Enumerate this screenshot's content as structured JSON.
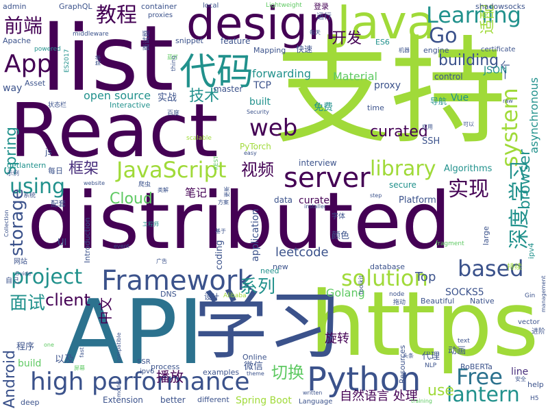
{
  "palette": {
    "background": "#ffffff",
    "c1": "#440154",
    "c2": "#3b528b",
    "c3": "#21918c",
    "c4": "#5ec962",
    "c5": "#a0da39",
    "c6": "#2c728e",
    "c7": "#472d7b"
  },
  "words": [
    {
      "text": "React",
      "color": "#440154"
    },
    {
      "text": "distributed",
      "color": "#440154"
    },
    {
      "text": "支持",
      "color": "#a0da39"
    },
    {
      "text": "list",
      "color": "#440154"
    },
    {
      "text": "API",
      "color": "#2c728e"
    },
    {
      "text": "https",
      "color": "#a0da39"
    },
    {
      "text": "学习",
      "color": "#3b528b"
    },
    {
      "text": "design",
      "color": "#440154"
    },
    {
      "text": "Java",
      "color": "#a0da39"
    },
    {
      "text": "Python",
      "color": "#3b528b"
    },
    {
      "text": "high performance",
      "color": "#3b528b"
    },
    {
      "text": "代码",
      "color": "#21918c"
    },
    {
      "text": "Framework",
      "color": "#3b528b"
    },
    {
      "text": "server",
      "color": "#440154"
    },
    {
      "text": "JavaScript",
      "color": "#a0da39"
    },
    {
      "text": "web",
      "color": "#440154"
    },
    {
      "text": "Learning",
      "color": "#21918c"
    },
    {
      "text": "solution",
      "color": "#a0da39"
    },
    {
      "text": "project",
      "color": "#21918c"
    },
    {
      "text": "system",
      "color": "#a0da39"
    },
    {
      "text": "based",
      "color": "#3b528b"
    },
    {
      "text": "library",
      "color": "#a0da39"
    },
    {
      "text": "Free",
      "color": "#2c728e"
    },
    {
      "text": "lantern",
      "color": "#21918c"
    },
    {
      "text": "App",
      "color": "#440154"
    },
    {
      "text": "Go",
      "color": "#3b528b"
    },
    {
      "text": "教程",
      "color": "#440154"
    },
    {
      "text": "前端",
      "color": "#440154"
    },
    {
      "text": "building",
      "color": "#3b528b"
    },
    {
      "text": "系列",
      "color": "#21918c"
    },
    {
      "text": "面试",
      "color": "#21918c"
    },
    {
      "text": "视频",
      "color": "#440154"
    },
    {
      "text": "实现",
      "color": "#440154"
    },
    {
      "text": "深度 学习",
      "color": "#21918c"
    },
    {
      "text": "using",
      "color": "#21918c"
    },
    {
      "text": "storage",
      "color": "#3b528b"
    },
    {
      "text": "Spring",
      "color": "#21918c"
    },
    {
      "text": "Cloud",
      "color": "#5ec962"
    },
    {
      "text": "curated",
      "color": "#440154"
    },
    {
      "text": "切换",
      "color": "#5ec962"
    },
    {
      "text": "browser",
      "color": "#21918c"
    },
    {
      "text": "技术",
      "color": "#21918c"
    },
    {
      "text": "框架",
      "color": "#472d7b"
    },
    {
      "text": "开发",
      "color": "#440154"
    },
    {
      "text": "client",
      "color": "#440154"
    },
    {
      "text": "Android",
      "color": "#3b528b"
    },
    {
      "text": "适配",
      "color": "#a0da39"
    },
    {
      "text": "中文",
      "color": "#440154"
    },
    {
      "text": "leetcode",
      "color": "#3b528b"
    },
    {
      "text": "use",
      "color": "#a0da39"
    },
    {
      "text": "播放",
      "color": "#440154"
    },
    {
      "text": "自然语言 处理",
      "color": "#440154"
    },
    {
      "text": "旋转",
      "color": "#440154"
    },
    {
      "text": "Top",
      "color": "#3b528b"
    },
    {
      "text": "SOCKS5",
      "color": "#3b528b"
    },
    {
      "text": "Golang",
      "color": "#5ec962"
    },
    {
      "text": "line",
      "color": "#472d7b"
    },
    {
      "text": "asynchronous",
      "color": "#21918c"
    },
    {
      "text": "Material",
      "color": "#5ec962"
    },
    {
      "text": "forwarding",
      "color": "#21918c"
    },
    {
      "text": "open source",
      "color": "#21918c"
    },
    {
      "text": "Spring Boot",
      "color": "#a0da39"
    },
    {
      "text": "GraphQL",
      "color": "#3b528b"
    },
    {
      "text": "container",
      "color": "#3b528b"
    },
    {
      "text": "local",
      "color": "#3b528b"
    },
    {
      "text": "Lightweight",
      "color": "#5ec962"
    },
    {
      "text": "登录",
      "color": "#440154"
    },
    {
      "text": "运行",
      "color": "#3b528b"
    },
    {
      "text": "shadowsocks",
      "color": "#3b528b"
    },
    {
      "text": "admin",
      "color": "#3b528b"
    },
    {
      "text": "proxies",
      "color": "#3b528b"
    },
    {
      "text": "Apache",
      "color": "#3b528b"
    },
    {
      "text": "middleware",
      "color": "#3b528b"
    },
    {
      "text": "snippet",
      "color": "#3b528b"
    },
    {
      "text": "feature",
      "color": "#3b528b"
    },
    {
      "text": "Mapping",
      "color": "#3b528b"
    },
    {
      "text": "快速",
      "color": "#3b528b"
    },
    {
      "text": "ES6",
      "color": "#21918c"
    },
    {
      "text": "engine",
      "color": "#3b528b"
    },
    {
      "text": "certificate",
      "color": "#3b528b"
    },
    {
      "text": "powered",
      "color": "#21918c"
    },
    {
      "text": "ES2017",
      "color": "#21918c"
    },
    {
      "text": "thing",
      "color": "#3b528b"
    },
    {
      "text": "JSON",
      "color": "#21918c"
    },
    {
      "text": "一个",
      "color": "#3b528b"
    },
    {
      "text": "TCP",
      "color": "#3b528b"
    },
    {
      "text": "proxy",
      "color": "#3b528b"
    },
    {
      "text": "control",
      "color": "#3b528b"
    },
    {
      "text": "way",
      "color": "#3b528b"
    },
    {
      "text": "Asset",
      "color": "#3b528b"
    },
    {
      "text": "master",
      "color": "#3b528b"
    },
    {
      "text": "实战",
      "color": "#3b528b"
    },
    {
      "text": "built",
      "color": "#21918c"
    },
    {
      "text": "Vue",
      "color": "#21918c"
    },
    {
      "text": "导航",
      "color": "#21918c"
    },
    {
      "text": "Interactive",
      "color": "#21918c"
    },
    {
      "text": "免费",
      "color": "#21918c"
    },
    {
      "text": "time",
      "color": "#3b528b"
    },
    {
      "text": "Security",
      "color": "#3b528b"
    },
    {
      "text": "状态栏",
      "color": "#3b528b"
    },
    {
      "text": "百度",
      "color": "#3b528b"
    },
    {
      "text": "js",
      "color": "#3b528b"
    },
    {
      "text": "scalable",
      "color": "#a0da39"
    },
    {
      "text": "PyTorch",
      "color": "#a0da39"
    },
    {
      "text": "SSH",
      "color": "#3b528b"
    },
    {
      "text": "easy",
      "color": "#3b528b"
    },
    {
      "text": "getlantern",
      "color": "#21918c"
    },
    {
      "text": "interview",
      "color": "#3b528b"
    },
    {
      "text": "Algorithms",
      "color": "#21918c"
    },
    {
      "text": "每日",
      "color": "#3b528b"
    },
    {
      "text": "示例",
      "color": "#3b528b"
    },
    {
      "text": "website",
      "color": "#3b528b"
    },
    {
      "text": "爬虫",
      "color": "#3b528b"
    },
    {
      "text": "笔记",
      "color": "#440154"
    },
    {
      "text": "secure",
      "color": "#21918c"
    },
    {
      "text": "系统",
      "color": "#3b528b"
    },
    {
      "text": "配套",
      "color": "#3b528b"
    },
    {
      "text": "方案",
      "color": "#3b528b"
    },
    {
      "text": "data",
      "color": "#3b528b"
    },
    {
      "text": "curated",
      "color": "#440154"
    },
    {
      "text": "step",
      "color": "#3b528b"
    },
    {
      "text": "Platform",
      "color": "#3b528b"
    },
    {
      "text": "installer",
      "color": "#3b528b"
    },
    {
      "text": "字体",
      "color": "#3b528b"
    },
    {
      "text": "颜色",
      "color": "#3b528b"
    },
    {
      "text": "工程师",
      "color": "#21918c"
    },
    {
      "text": "基于",
      "color": "#3b528b"
    },
    {
      "text": "application",
      "color": "#3b528b"
    },
    {
      "text": "Introduction",
      "color": "#3b528b"
    },
    {
      "text": "UI",
      "color": "#3b528b"
    },
    {
      "text": "event",
      "color": "#3b528b"
    },
    {
      "text": "coding",
      "color": "#3b528b"
    },
    {
      "text": "large",
      "color": "#3b528b"
    },
    {
      "text": "fragment",
      "color": "#5ec962"
    },
    {
      "text": "ipv4",
      "color": "#21918c"
    },
    {
      "text": "网站",
      "color": "#3b528b"
    },
    {
      "text": "广告",
      "color": "#3b528b"
    },
    {
      "text": "new",
      "color": "#3b528b"
    },
    {
      "text": "need",
      "color": "#21918c"
    },
    {
      "text": "database",
      "color": "#3b528b"
    },
    {
      "text": "持续",
      "color": "#a0da39"
    },
    {
      "text": "management",
      "color": "#3b528b"
    },
    {
      "text": "Guide",
      "color": "#3b528b"
    },
    {
      "text": "自己",
      "color": "#3b528b"
    },
    {
      "text": "DNS",
      "color": "#3b528b"
    },
    {
      "text": "设计",
      "color": "#3b528b"
    },
    {
      "text": "Alibaba",
      "color": "#a0da39"
    },
    {
      "text": "toolkit",
      "color": "#3b528b"
    },
    {
      "text": "node",
      "color": "#3b528b"
    },
    {
      "text": "拖动",
      "color": "#3b528b"
    },
    {
      "text": "Beautiful",
      "color": "#3b528b"
    },
    {
      "text": "Native",
      "color": "#3b528b"
    },
    {
      "text": "Gin",
      "color": "#3b528b"
    },
    {
      "text": "程序",
      "color": "#3b528b"
    },
    {
      "text": "以及",
      "color": "#3b528b"
    },
    {
      "text": "compatible",
      "color": "#3b528b"
    },
    {
      "text": "fast",
      "color": "#3b528b"
    },
    {
      "text": "Online",
      "color": "#3b528b"
    },
    {
      "text": "微信",
      "color": "#3b528b"
    },
    {
      "text": "Resources",
      "color": "#3b528b"
    },
    {
      "text": "代理",
      "color": "#3b528b"
    },
    {
      "text": "动画",
      "color": "#3b528b"
    },
    {
      "text": "vector",
      "color": "#3b528b"
    },
    {
      "text": "text",
      "color": "#3b528b"
    },
    {
      "text": "进阶",
      "color": "#3b528b"
    },
    {
      "text": "build",
      "color": "#5ec962"
    },
    {
      "text": "SSR",
      "color": "#3b528b"
    },
    {
      "text": "ipv6",
      "color": "#3b528b"
    },
    {
      "text": "process",
      "color": "#3b528b"
    },
    {
      "text": "examples",
      "color": "#3b528b"
    },
    {
      "text": "theme",
      "color": "#3b528b"
    },
    {
      "text": "头条",
      "color": "#3b528b"
    },
    {
      "text": "NLP",
      "color": "#3b528b"
    },
    {
      "text": "RoBERTa",
      "color": "#3b528b"
    },
    {
      "text": "安全",
      "color": "#3b528b"
    },
    {
      "text": "help",
      "color": "#3b528b"
    },
    {
      "text": "H5",
      "color": "#3b528b"
    },
    {
      "text": "Extension",
      "color": "#3b528b"
    },
    {
      "text": "better",
      "color": "#3b528b"
    },
    {
      "text": "different",
      "color": "#3b528b"
    },
    {
      "text": "written",
      "color": "#3b528b"
    },
    {
      "text": "Language",
      "color": "#3b528b"
    },
    {
      "text": "training",
      "color": "#5ec962"
    },
    {
      "text": "deep",
      "color": "#3b528b"
    },
    {
      "text": "one",
      "color": "#5ec962"
    },
    {
      "text": "model",
      "color": "#3b528b"
    },
    {
      "text": "Collection",
      "color": "#3b528b"
    },
    {
      "text": "机器",
      "color": "#3b528b"
    },
    {
      "text": "蓝灯",
      "color": "#5ec962"
    },
    {
      "text": "简单",
      "color": "#3b528b"
    },
    {
      "text": "应用",
      "color": "#3b528b"
    },
    {
      "text": "可以",
      "color": "#3b528b"
    },
    {
      "text": "raw",
      "color": "#3b528b"
    },
    {
      "text": "REST",
      "color": "#5ec962"
    },
    {
      "text": "更新",
      "color": "#3b528b"
    },
    {
      "text": "每天",
      "color": "#3b528b"
    },
    {
      "text": "类解",
      "color": "#3b528b"
    },
    {
      "text": "屏幕",
      "color": "#5ec962"
    },
    {
      "text": "面试题",
      "color": "#3b528b"
    }
  ]
}
